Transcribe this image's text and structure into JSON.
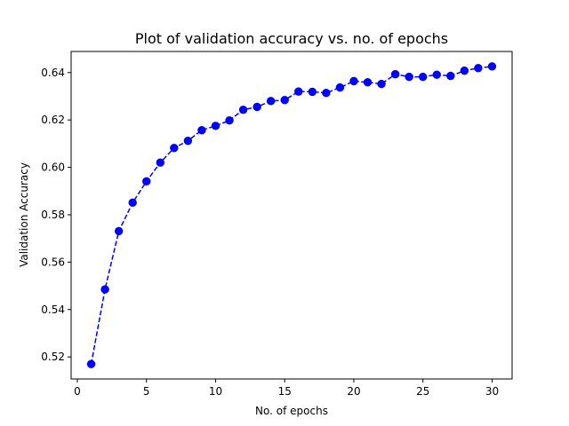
{
  "chart_data": {
    "type": "line",
    "title": "Plot of validation accuracy vs. no. of epochs",
    "xlabel": "No. of epochs",
    "ylabel": "Validation Accuracy",
    "xlim": [
      -0.45,
      31.45
    ],
    "ylim": [
      0.5107,
      0.6489
    ],
    "xticks": [
      0,
      5,
      10,
      15,
      20,
      25,
      30
    ],
    "yticks": [
      0.52,
      0.54,
      0.56,
      0.58,
      0.6,
      0.62,
      0.64
    ],
    "ytick_labels": [
      "0.52",
      "0.54",
      "0.56",
      "0.58",
      "0.60",
      "0.62",
      "0.64"
    ],
    "grid": false,
    "series": [
      {
        "color": "#0000ff",
        "line_style": "dashed",
        "marker": "circle",
        "x": [
          1,
          2,
          3,
          4,
          5,
          6,
          7,
          8,
          9,
          10,
          11,
          12,
          13,
          14,
          15,
          16,
          17,
          18,
          19,
          20,
          21,
          22,
          23,
          24,
          25,
          26,
          27,
          28,
          29,
          30
        ],
        "values": [
          0.517,
          0.5485,
          0.5731,
          0.5851,
          0.5941,
          0.602,
          0.6082,
          0.6112,
          0.6157,
          0.6175,
          0.6198,
          0.6243,
          0.6255,
          0.628,
          0.6284,
          0.632,
          0.6319,
          0.6314,
          0.6337,
          0.6364,
          0.6359,
          0.6352,
          0.6393,
          0.6382,
          0.6382,
          0.6391,
          0.6386,
          0.6408,
          0.6419,
          0.6426
        ]
      }
    ]
  }
}
